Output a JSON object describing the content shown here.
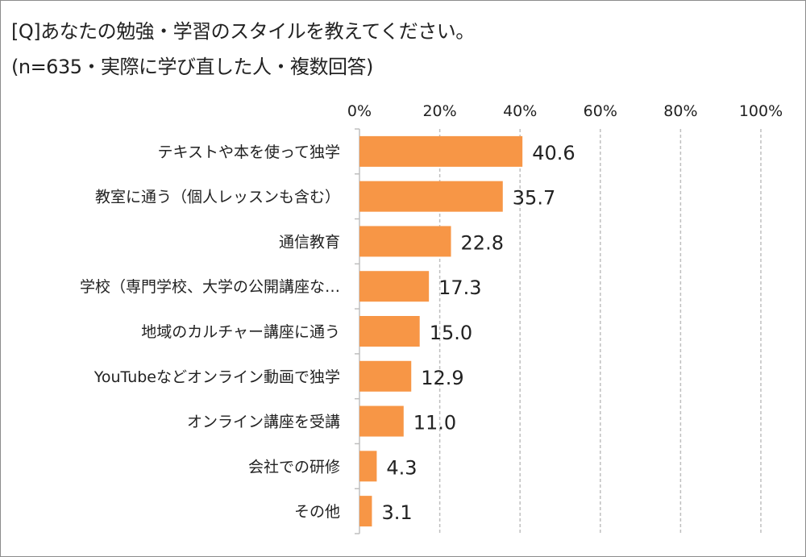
{
  "header": {
    "title": "[Q]あなたの勉強・学習のスタイルを教えてください。",
    "subtitle": "(n=635・実際に学び直した人・複数回答)"
  },
  "chart_data": {
    "type": "bar",
    "orientation": "horizontal",
    "categories": [
      "テキストや本を使って独学",
      "教室に通う（個人レッスンも含む）",
      "通信教育",
      "学校（専門学校、大学の公開講座な…",
      "地域のカルチャー講座に通う",
      "YouTubeなどオンライン動画で独学",
      "オンライン講座を受講",
      "会社での研修",
      "その他"
    ],
    "values": [
      40.6,
      35.7,
      22.8,
      17.3,
      15.0,
      12.9,
      11.0,
      4.3,
      3.1
    ],
    "value_labels": [
      "40.6",
      "35.7",
      "22.8",
      "17.3",
      "15.0",
      "12.9",
      "11.0",
      "4.3",
      "3.1"
    ],
    "xlim": [
      0,
      100
    ],
    "xticks": [
      0,
      20,
      40,
      60,
      80,
      100
    ],
    "xtick_labels": [
      "0%",
      "20%",
      "40%",
      "60%",
      "80%",
      "100%"
    ],
    "x_axis_position": "top",
    "grid": true,
    "legend": "none",
    "bar_color": "#f79646",
    "grid_color": "#bfbfbf",
    "axis_color": "#bfbfbf"
  }
}
